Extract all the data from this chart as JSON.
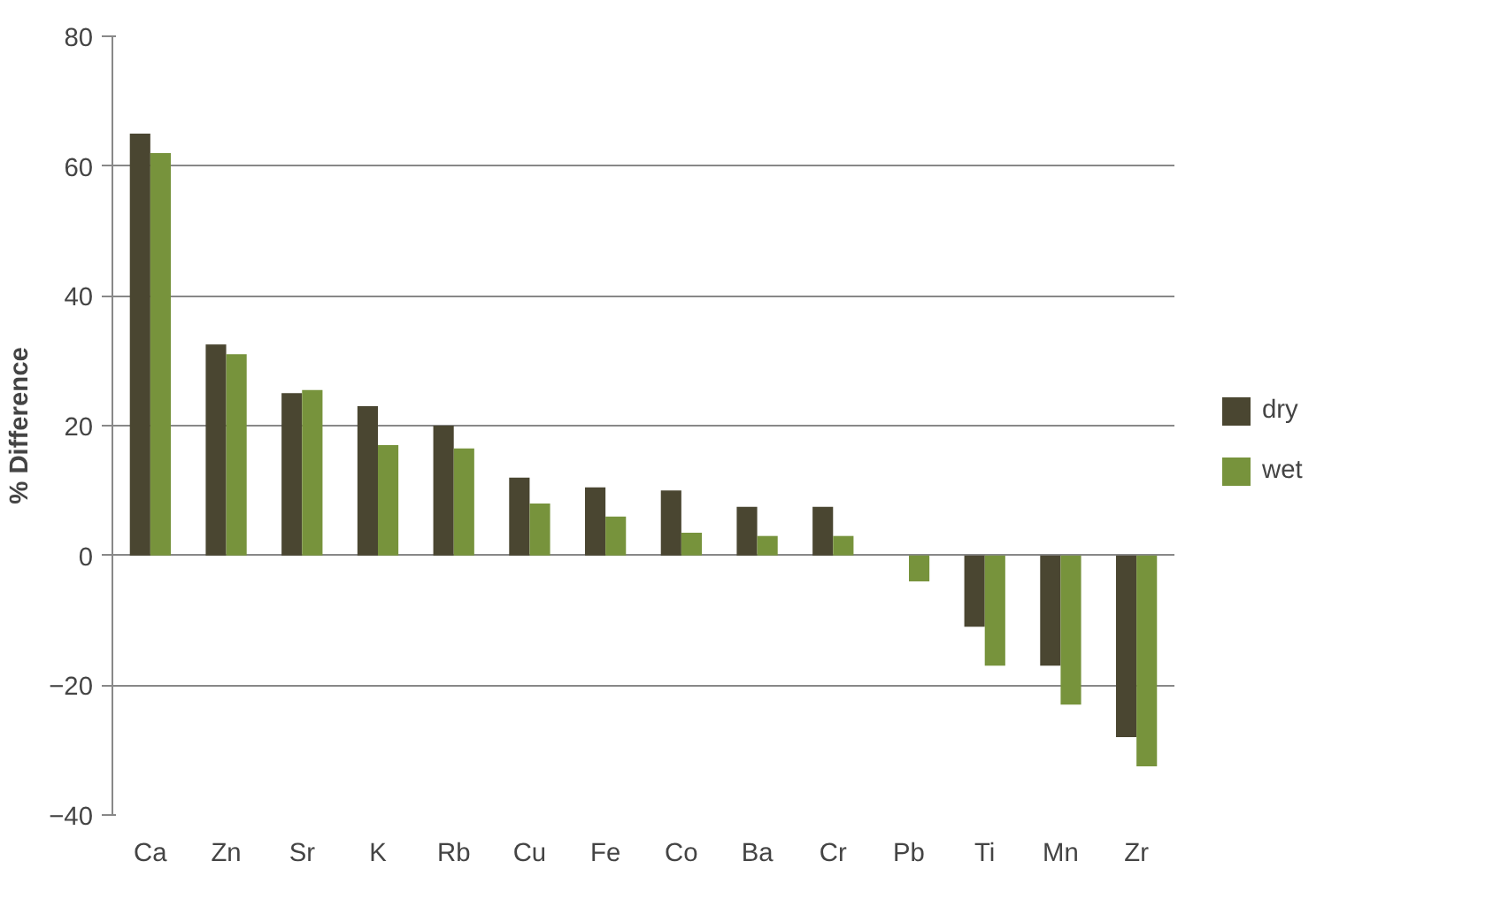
{
  "chart_data": {
    "type": "bar",
    "ylabel": "% Difference",
    "categories": [
      "Ca",
      "Zn",
      "Sr",
      "K",
      "Rb",
      "Cu",
      "Fe",
      "Co",
      "Ba",
      "Cr",
      "Pb",
      "Ti",
      "Mn",
      "Zr"
    ],
    "series": [
      {
        "name": "dry",
        "color": "#4a4631",
        "values": [
          65,
          32.5,
          25,
          23,
          20,
          12,
          10.5,
          10,
          7.5,
          7.5,
          0,
          -11,
          -17,
          -28
        ]
      },
      {
        "name": "wet",
        "color": "#77933c",
        "values": [
          62,
          31,
          25.5,
          17,
          16.5,
          8,
          6,
          3.5,
          3,
          3,
          -4,
          -17,
          -23,
          -32.5
        ]
      }
    ],
    "ylim": [
      -40,
      80
    ],
    "yticks": [
      -40,
      -20,
      0,
      20,
      40,
      60,
      80
    ],
    "grid": "y",
    "legend": "right"
  }
}
